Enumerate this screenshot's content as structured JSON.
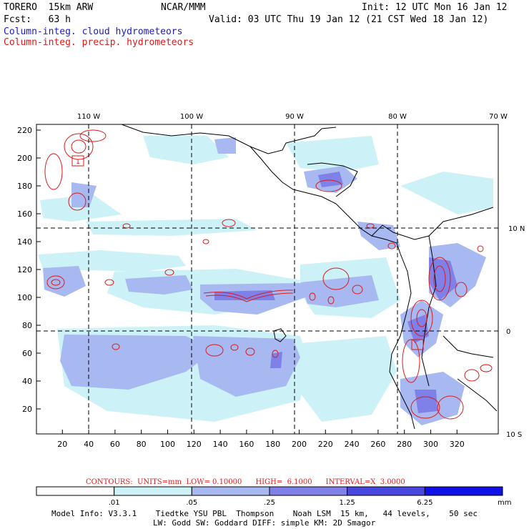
{
  "header": {
    "model": "TORERO  15km ARW",
    "org": "NCAR/MMM",
    "init": "Init: 12 UTC Mon 16 Jan 12",
    "fcst": "Fcst:   63 h",
    "valid": "Valid: 03 UTC Thu 19 Jan 12 (21 CST Wed 18 Jan 12)",
    "legend_cloud": "Column-integ. cloud hydrometeors",
    "legend_precip": "Column-integ. precip. hydrometeors"
  },
  "map": {
    "top_lon_labels": [
      "110 W",
      "100 W",
      "90 W",
      "80 W",
      "70 W"
    ],
    "right_lat_labels": [
      "10 N",
      "0",
      "10 S"
    ],
    "x_ticks": [
      "20",
      "40",
      "60",
      "80",
      "100",
      "120",
      "140",
      "160",
      "180",
      "200",
      "220",
      "240",
      "260",
      "280",
      "300",
      "320"
    ],
    "y_ticks": [
      "20",
      "40",
      "60",
      "80",
      "100",
      "120",
      "140",
      "160",
      "180",
      "200",
      "220"
    ],
    "grid_marker": "1"
  },
  "contour_info": "CONTOURS:  UNITS=mm  LOW= 0.10000      HIGH=  6.1000      INTERVAL=X  3.0000",
  "colorbar": {
    "labels": [
      ".01",
      ".05",
      ".25",
      "1.25",
      "6.25"
    ],
    "unit": "mm",
    "colors": [
      "#ffffff",
      "#ccf2f7",
      "#a8b8f0",
      "#7f80e8",
      "#4848e0",
      "#1010e8"
    ]
  },
  "footer": {
    "line1": "Model Info: V3.3.1    Tiedtke YSU PBL  Thompson    Noah LSM  15 km,   44 levels,    50 sec",
    "line2": "LW: Godd SW: Goddard DIFF: simple KM: 2D Smagor"
  }
}
